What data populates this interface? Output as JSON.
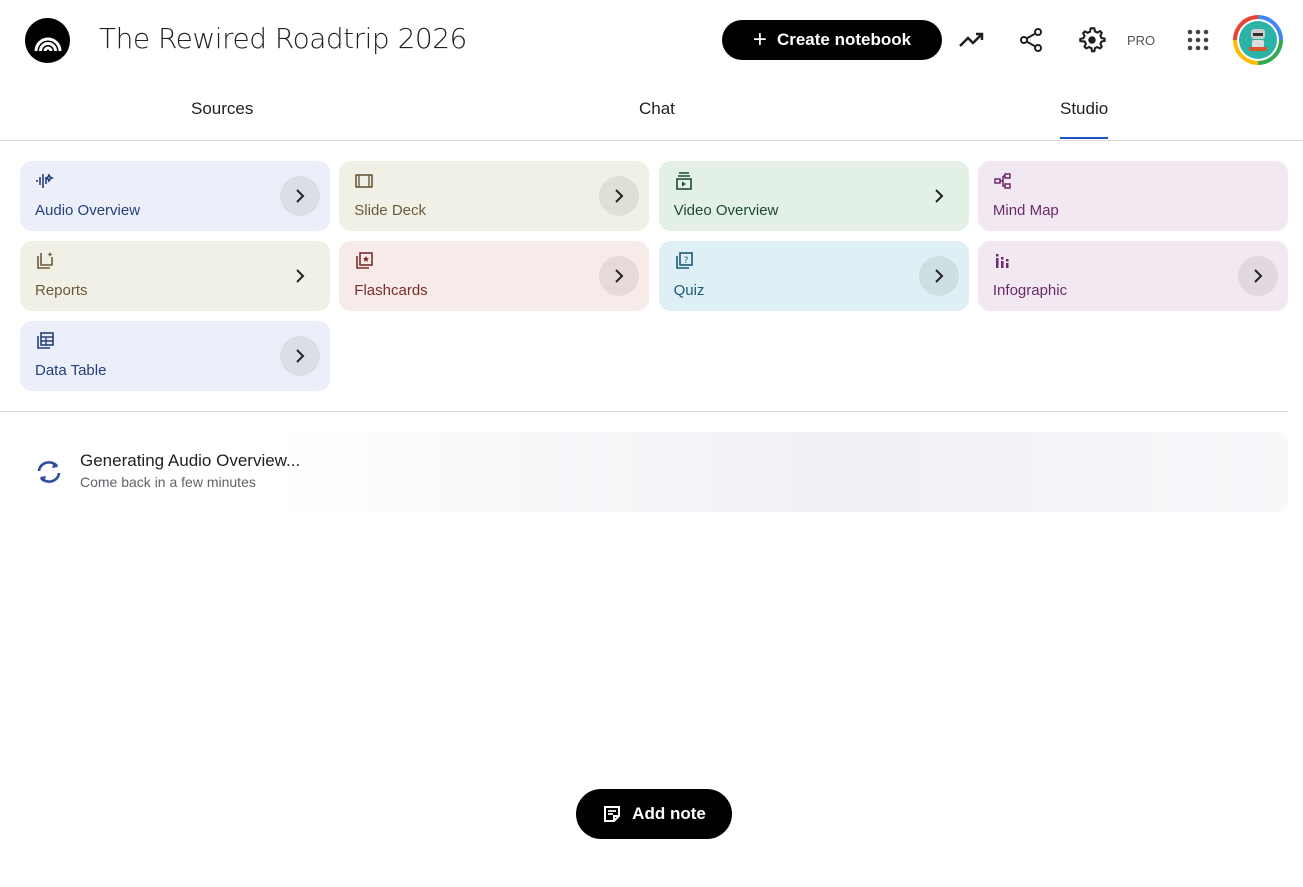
{
  "header": {
    "title": "The Rewired Roadtrip 2026",
    "create_label": "Create notebook",
    "pro_label": "PRO"
  },
  "tabs": [
    {
      "label": "Sources"
    },
    {
      "label": "Chat"
    },
    {
      "label": "Studio",
      "active": true
    }
  ],
  "studio": {
    "tools": [
      {
        "label": "Audio Overview",
        "icon": "audio-waveform-icon",
        "bg": "#eceff9",
        "color": "#25407a"
      },
      {
        "label": "Slide Deck",
        "icon": "slide-icon",
        "bg": "#f1f0e7",
        "color": "#6b5a3a"
      },
      {
        "label": "Video Overview",
        "icon": "video-icon",
        "bg": "#e3f0e6",
        "color": "#1e4d2b"
      },
      {
        "label": "Mind Map",
        "icon": "mind-map-icon",
        "bg": "#f2e8f1",
        "color": "#6c2a6a"
      },
      {
        "label": "Reports",
        "icon": "reports-icon",
        "bg": "#f1f0e7",
        "color": "#6b5a3a"
      },
      {
        "label": "Flashcards",
        "icon": "flashcards-icon",
        "bg": "#f7ebe9",
        "color": "#7a2e2a"
      },
      {
        "label": "Quiz",
        "icon": "quiz-icon",
        "bg": "#def0f5",
        "color": "#1d5a73"
      },
      {
        "label": "Infographic",
        "icon": "infographic-icon",
        "bg": "#f2e8f1",
        "color": "#6c2a6a"
      },
      {
        "label": "Data Table",
        "icon": "table-icon",
        "bg": "#eceff9",
        "color": "#25407a"
      }
    ]
  },
  "generating": {
    "title": "Generating Audio Overview...",
    "subtitle": "Come back in a few minutes"
  },
  "add_note_label": "Add note"
}
